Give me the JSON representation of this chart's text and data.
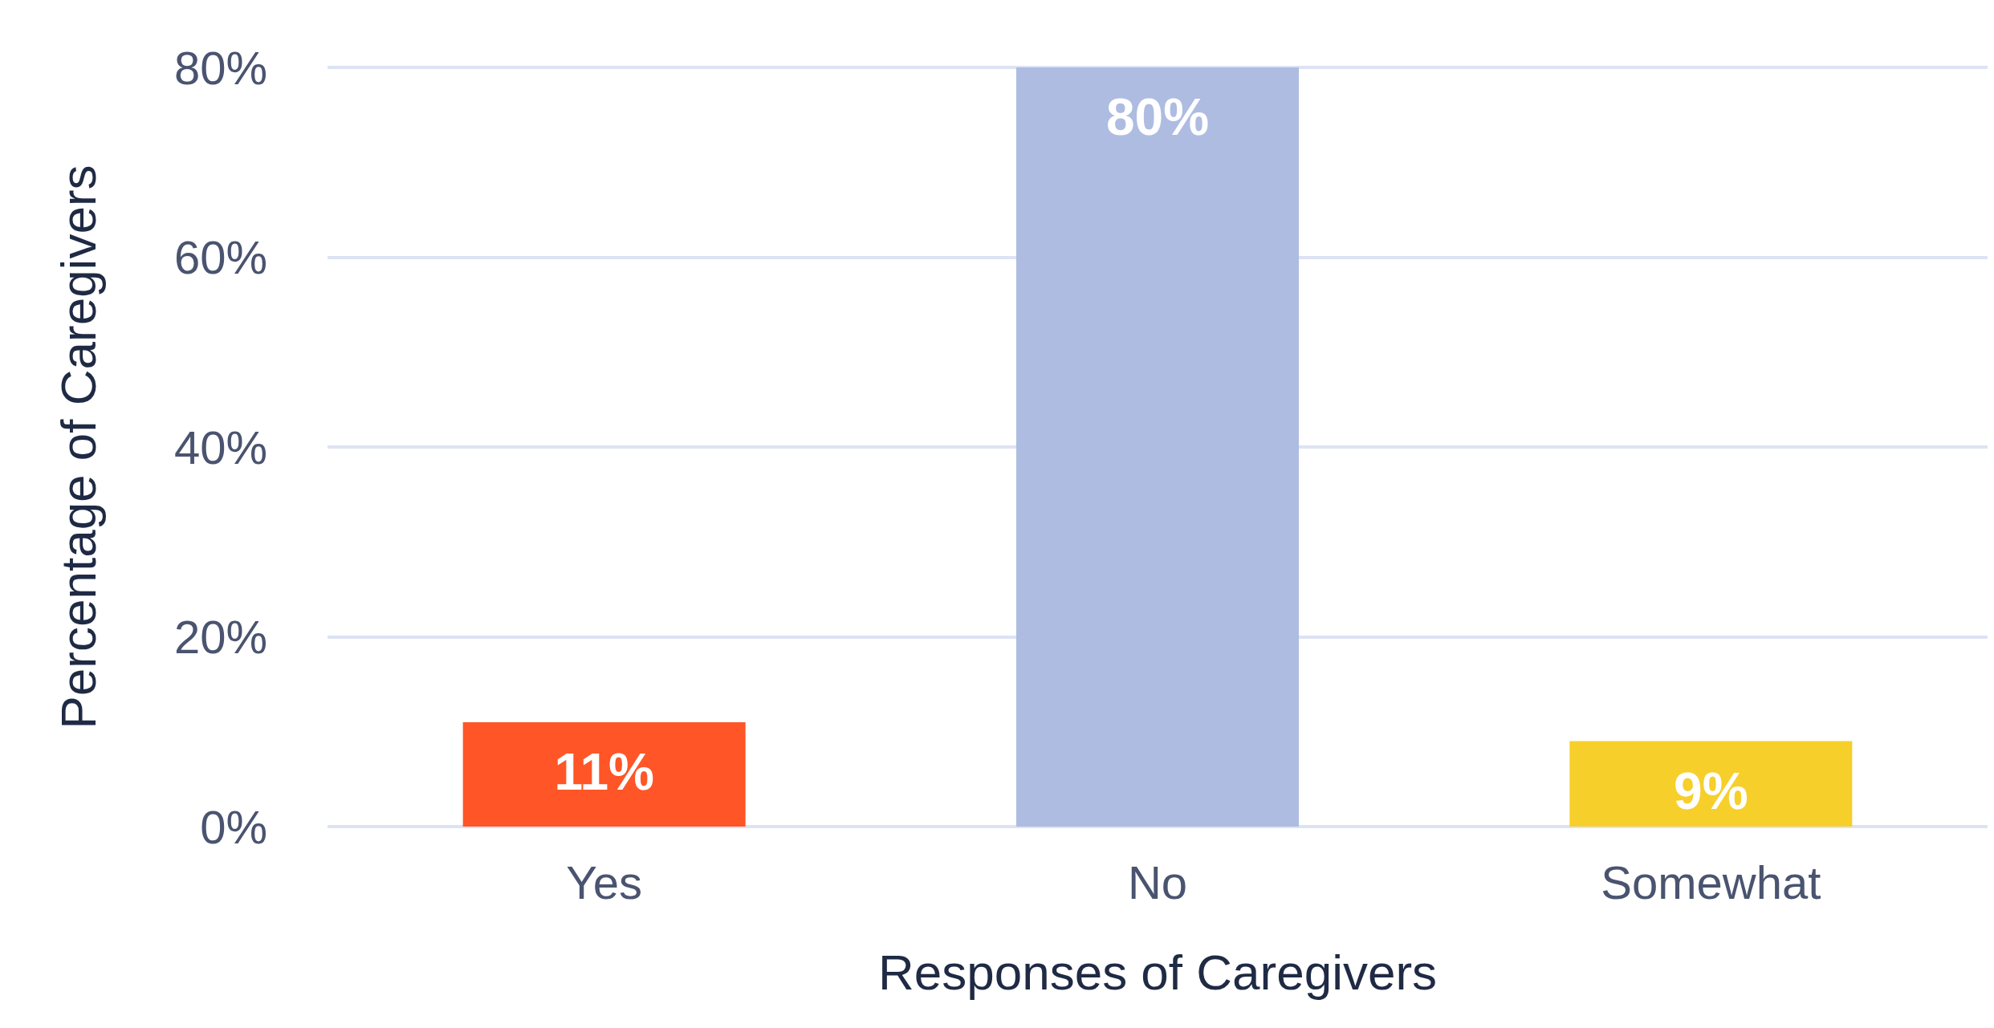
{
  "chart_data": {
    "type": "bar",
    "xlabel": "Responses of Caregivers",
    "ylabel": "Percentage of Caregivers",
    "categories": [
      "Yes",
      "No",
      "Somewhat"
    ],
    "values": [
      11,
      80,
      9
    ],
    "colors": [
      "#ff5527",
      "#aebce2",
      "#f7cf2a"
    ],
    "value_labels": [
      "11%",
      "80%",
      "9%"
    ],
    "ylim": [
      0,
      80
    ],
    "yticks": [
      {
        "value": 0,
        "label": "0%"
      },
      {
        "value": 20,
        "label": "20%"
      },
      {
        "value": 40,
        "label": "40%"
      },
      {
        "value": 60,
        "label": "60%"
      },
      {
        "value": 80,
        "label": "80%"
      }
    ],
    "grid": "y"
  }
}
